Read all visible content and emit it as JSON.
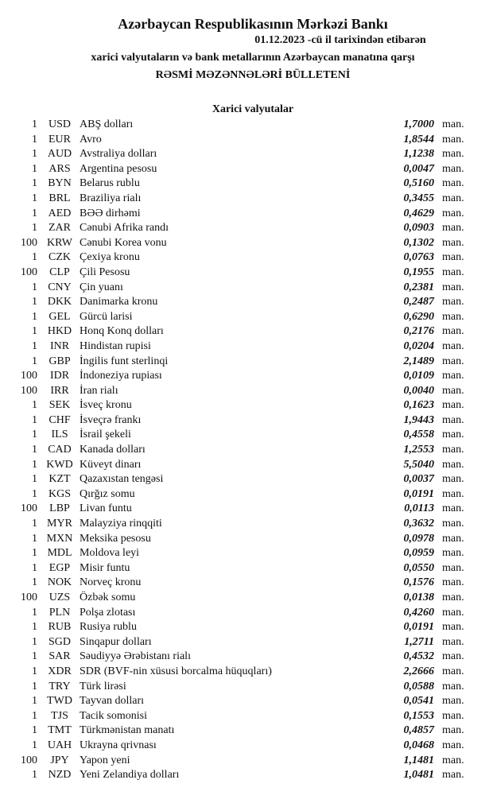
{
  "header": {
    "title": "Azərbaycan Respublikasının Mərkəzi Bankı",
    "date_line": "01.12.2023 -cü il tarixindən etibarən",
    "subtitle": "xarici valyutaların və bank metallarının Azərbaycan manatına qarşı",
    "bulletin": "RƏSMİ MƏZƏNNƏLƏRİ BÜLLETENİ"
  },
  "section_title": "Xarici valyutalar",
  "unit": "man.",
  "rates": [
    {
      "nominal": "1",
      "code": "USD",
      "name": "ABŞ dolları",
      "rate": "1,7000"
    },
    {
      "nominal": "1",
      "code": "EUR",
      "name": "Avro",
      "rate": "1,8544"
    },
    {
      "nominal": "1",
      "code": "AUD",
      "name": "Avstraliya dolları",
      "rate": "1,1238"
    },
    {
      "nominal": "1",
      "code": "ARS",
      "name": "Argentina pesosu",
      "rate": "0,0047"
    },
    {
      "nominal": "1",
      "code": "BYN",
      "name": "Belarus rublu",
      "rate": "0,5160"
    },
    {
      "nominal": "1",
      "code": "BRL",
      "name": "Braziliya rialı",
      "rate": "0,3455"
    },
    {
      "nominal": "1",
      "code": "AED",
      "name": "BƏƏ dirhəmi",
      "rate": "0,4629"
    },
    {
      "nominal": "1",
      "code": "ZAR",
      "name": "Cənubi Afrika randı",
      "rate": "0,0903"
    },
    {
      "nominal": "100",
      "code": "KRW",
      "name": "Cənubi Korea vonu",
      "rate": "0,1302"
    },
    {
      "nominal": "1",
      "code": "CZK",
      "name": "Çexiya kronu",
      "rate": "0,0763"
    },
    {
      "nominal": "100",
      "code": "CLP",
      "name": "Çili Pesosu",
      "rate": "0,1955"
    },
    {
      "nominal": "1",
      "code": "CNY",
      "name": "Çin yuanı",
      "rate": "0,2381"
    },
    {
      "nominal": "1",
      "code": "DKK",
      "name": "Danimarka kronu",
      "rate": "0,2487"
    },
    {
      "nominal": "1",
      "code": "GEL",
      "name": "Gürcü larisi",
      "rate": "0,6290"
    },
    {
      "nominal": "1",
      "code": "HKD",
      "name": "Honq Konq dolları",
      "rate": "0,2176"
    },
    {
      "nominal": "1",
      "code": "INR",
      "name": "Hindistan rupisi",
      "rate": "0,0204"
    },
    {
      "nominal": "1",
      "code": "GBP",
      "name": "İngilis funt sterlinqi",
      "rate": "2,1489"
    },
    {
      "nominal": "100",
      "code": "IDR",
      "name": "İndoneziya rupiası",
      "rate": "0,0109"
    },
    {
      "nominal": "100",
      "code": "IRR",
      "name": "İran rialı",
      "rate": "0,0040"
    },
    {
      "nominal": "1",
      "code": "SEK",
      "name": "İsveç kronu",
      "rate": "0,1623"
    },
    {
      "nominal": "1",
      "code": "CHF",
      "name": "İsveçrə frankı",
      "rate": "1,9443"
    },
    {
      "nominal": "1",
      "code": "ILS",
      "name": "İsrail şekeli",
      "rate": "0,4558"
    },
    {
      "nominal": "1",
      "code": "CAD",
      "name": "Kanada dolları",
      "rate": "1,2553"
    },
    {
      "nominal": "1",
      "code": "KWD",
      "name": "Küveyt dinarı",
      "rate": "5,5040"
    },
    {
      "nominal": "1",
      "code": "KZT",
      "name": "Qazaxıstan tengəsi",
      "rate": "0,0037"
    },
    {
      "nominal": "1",
      "code": "KGS",
      "name": "Qırğız somu",
      "rate": "0,0191"
    },
    {
      "nominal": "100",
      "code": "LBP",
      "name": "Livan funtu",
      "rate": "0,0113"
    },
    {
      "nominal": "1",
      "code": "MYR",
      "name": "Malayziya rinqqiti",
      "rate": "0,3632"
    },
    {
      "nominal": "1",
      "code": "MXN",
      "name": "Meksika pesosu",
      "rate": "0,0978"
    },
    {
      "nominal": "1",
      "code": "MDL",
      "name": "Moldova leyi",
      "rate": "0,0959"
    },
    {
      "nominal": "1",
      "code": "EGP",
      "name": "Misir funtu",
      "rate": "0,0550"
    },
    {
      "nominal": "1",
      "code": "NOK",
      "name": "Norveç kronu",
      "rate": "0,1576"
    },
    {
      "nominal": "100",
      "code": "UZS",
      "name": "Özbək somu",
      "rate": "0,0138"
    },
    {
      "nominal": "1",
      "code": "PLN",
      "name": "Polşa zlotası",
      "rate": "0,4260"
    },
    {
      "nominal": "1",
      "code": "RUB",
      "name": "Rusiya rublu",
      "rate": "0,0191"
    },
    {
      "nominal": "1",
      "code": "SGD",
      "name": "Sinqapur dolları",
      "rate": "1,2711"
    },
    {
      "nominal": "1",
      "code": "SAR",
      "name": "Səudiyyə Ərəbistanı rialı",
      "rate": "0,4532"
    },
    {
      "nominal": "1",
      "code": "XDR",
      "name": "SDR (BVF-nin xüsusi borcalma hüquqları)",
      "rate": "2,2666"
    },
    {
      "nominal": "1",
      "code": "TRY",
      "name": "Türk lirəsi",
      "rate": "0,0588"
    },
    {
      "nominal": "1",
      "code": "TWD",
      "name": "Tayvan dolları",
      "rate": "0,0541"
    },
    {
      "nominal": "1",
      "code": "TJS",
      "name": "Tacik somonisi",
      "rate": "0,1553"
    },
    {
      "nominal": "1",
      "code": "TMT",
      "name": "Türkmənistan manatı",
      "rate": "0,4857"
    },
    {
      "nominal": "1",
      "code": "UAH",
      "name": "Ukrayna qrivnası",
      "rate": "0,0468"
    },
    {
      "nominal": "100",
      "code": "JPY",
      "name": "Yapon yeni",
      "rate": "1,1481"
    },
    {
      "nominal": "1",
      "code": "NZD",
      "name": "Yeni Zelandiya dolları",
      "rate": "1,0481"
    }
  ]
}
